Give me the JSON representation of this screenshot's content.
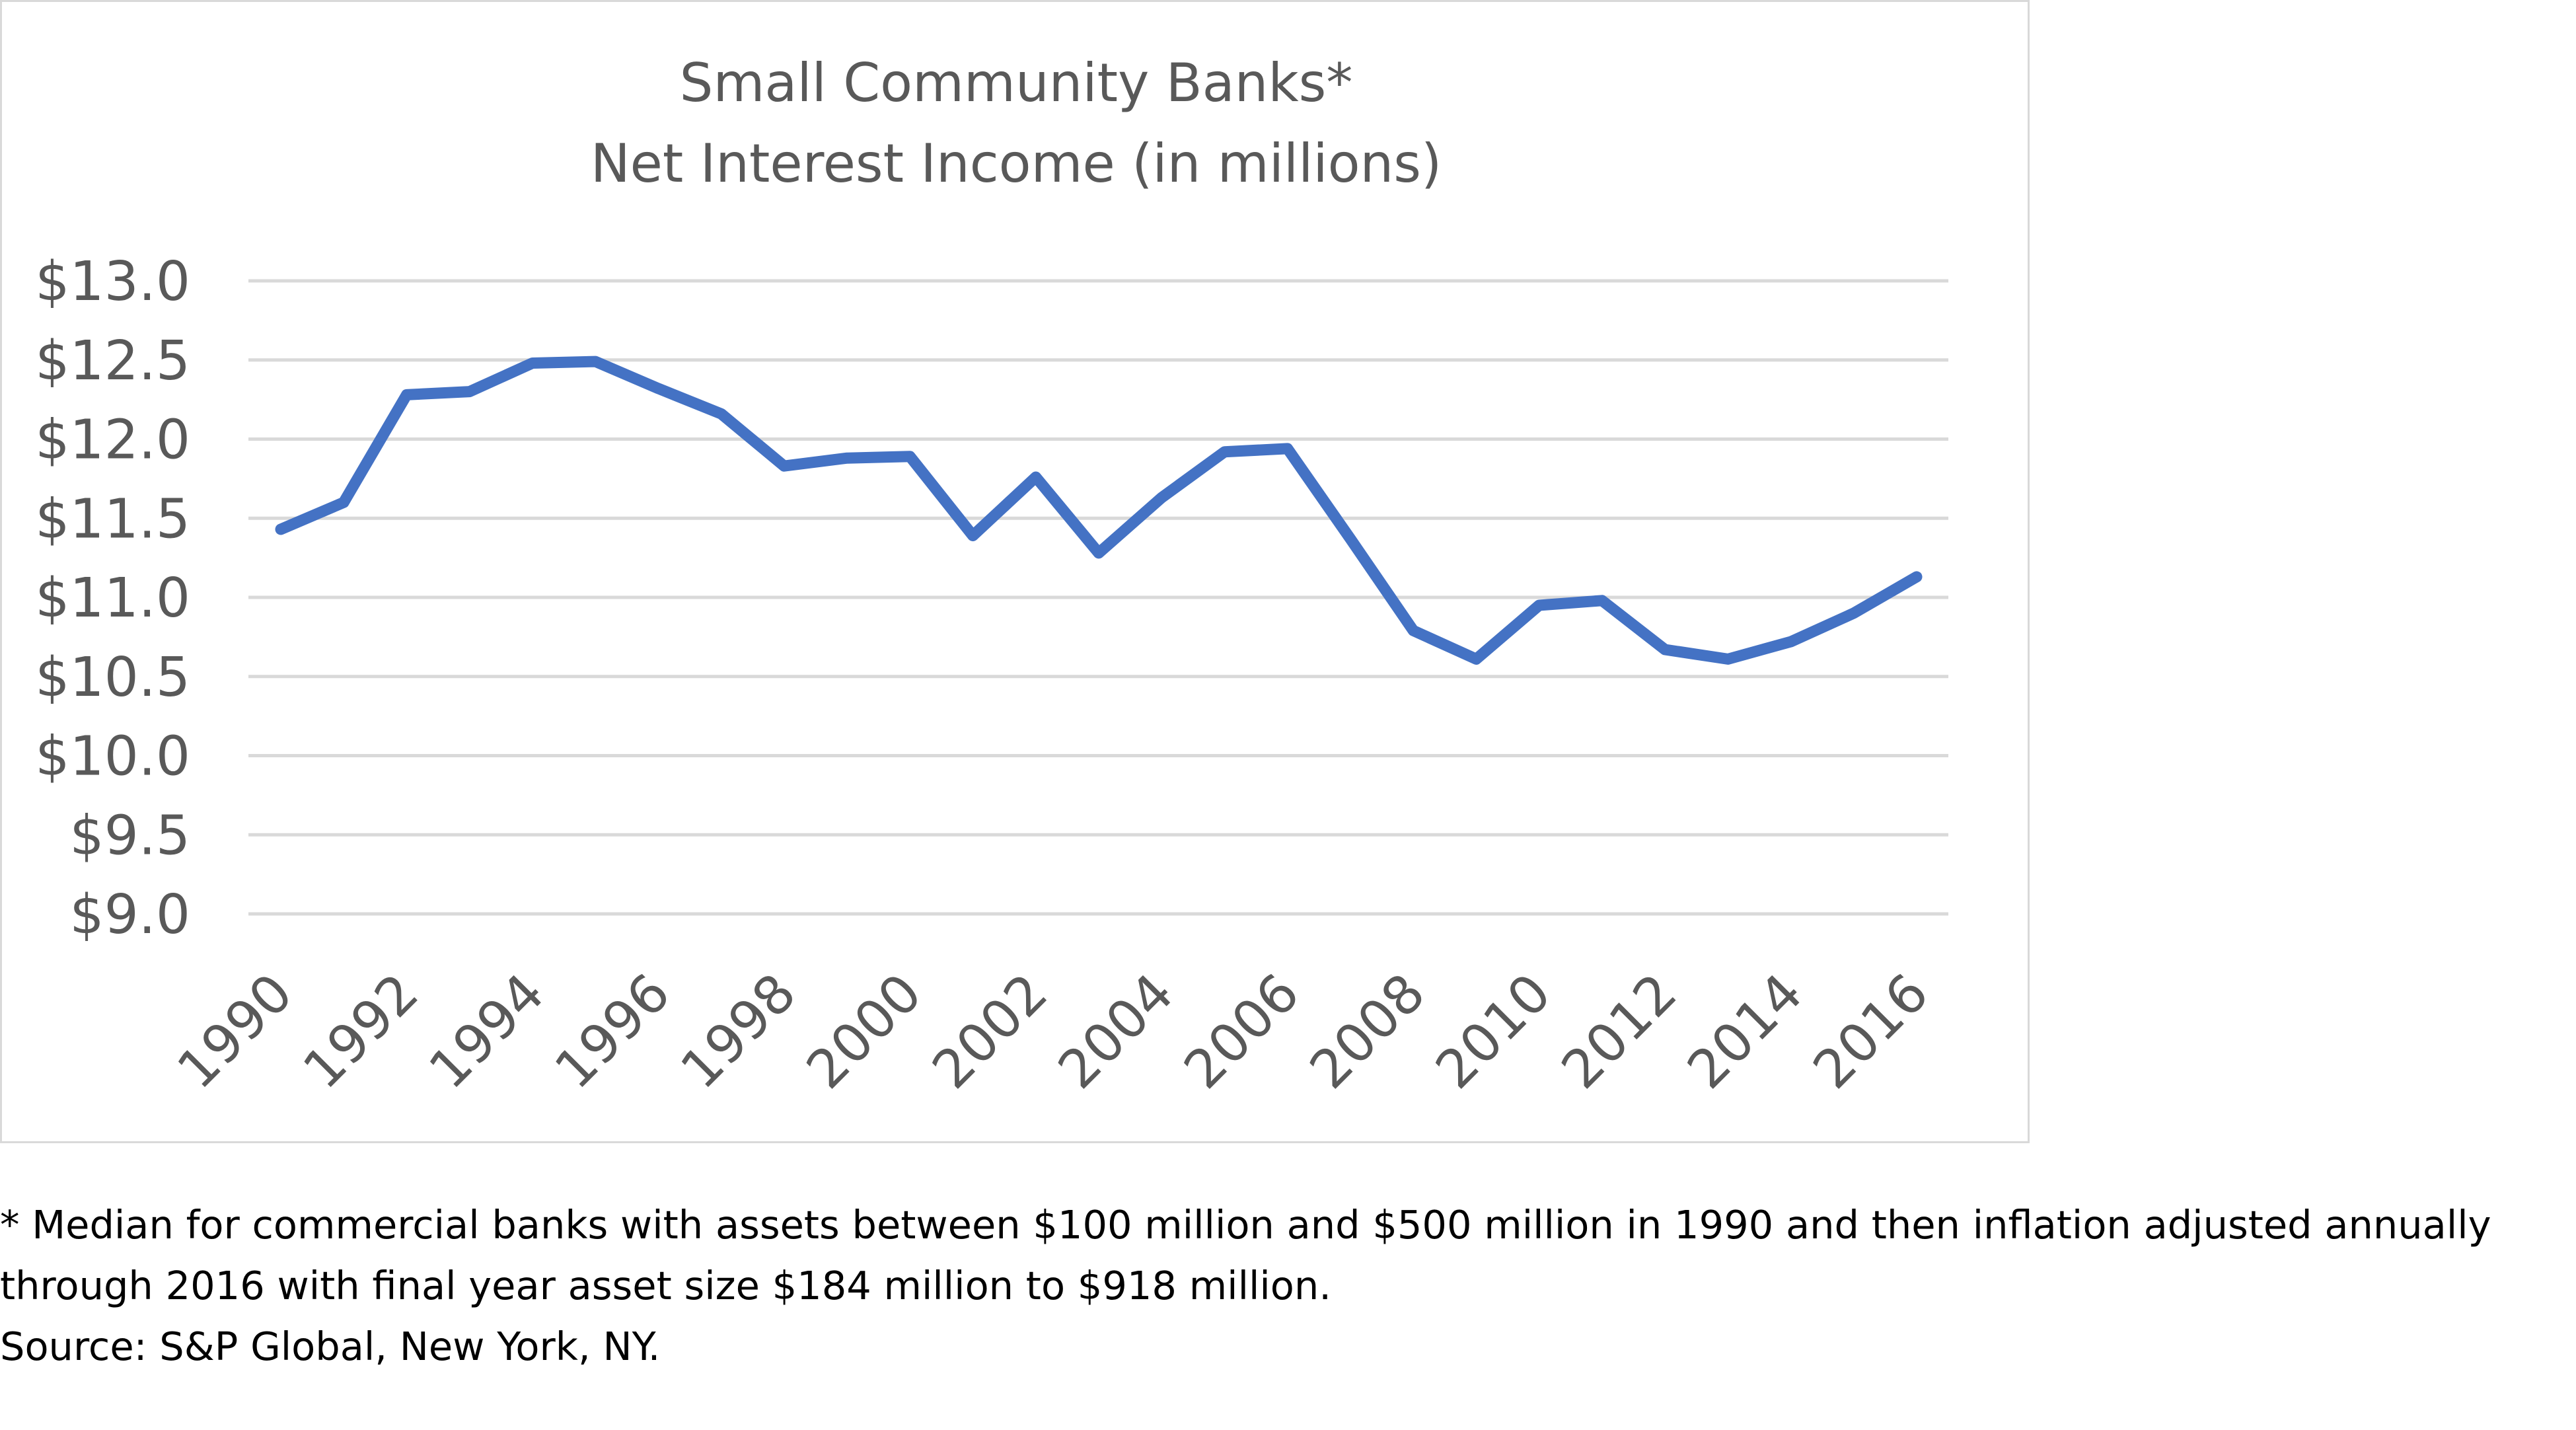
{
  "chart_data": {
    "type": "line",
    "title": "Small Community Banks*",
    "subtitle": "Net Interest Income (in millions)",
    "xlabel": "",
    "ylabel": "",
    "x": [
      1990,
      1991,
      1992,
      1993,
      1994,
      1995,
      1996,
      1997,
      1998,
      1999,
      2000,
      2001,
      2002,
      2003,
      2004,
      2005,
      2006,
      2007,
      2008,
      2009,
      2010,
      2011,
      2012,
      2013,
      2014,
      2015,
      2016
    ],
    "x_tick_labels": [
      "1990",
      "1992",
      "1994",
      "1996",
      "1998",
      "2000",
      "2002",
      "2004",
      "2006",
      "2008",
      "2010",
      "2012",
      "2014",
      "2016"
    ],
    "y_tick_labels": [
      "$13.0",
      "$12.5",
      "$12.0",
      "$11.5",
      "$11.0",
      "$10.5",
      "$10.0",
      "$9.5",
      "$9.0"
    ],
    "ylim": [
      9.0,
      13.0
    ],
    "grid": true,
    "legend": "none",
    "series": [
      {
        "values": [
          11.43,
          11.6,
          12.28,
          12.3,
          12.48,
          12.49,
          12.32,
          12.16,
          11.83,
          11.88,
          11.89,
          11.39,
          11.76,
          11.28,
          11.63,
          11.92,
          11.94,
          11.37,
          10.79,
          10.61,
          10.95,
          10.98,
          10.67,
          10.61,
          10.72,
          10.9,
          11.13
        ],
        "color": "#4472c4"
      }
    ]
  },
  "footnote": {
    "line1": "* Median for commercial banks with assets between $100 million and $500 million in 1990 and then inflation adjusted annually",
    "line2": "through 2016 with final year asset size $184 million to $918 million.",
    "line3": "Source: S&P Global, New York, NY."
  }
}
